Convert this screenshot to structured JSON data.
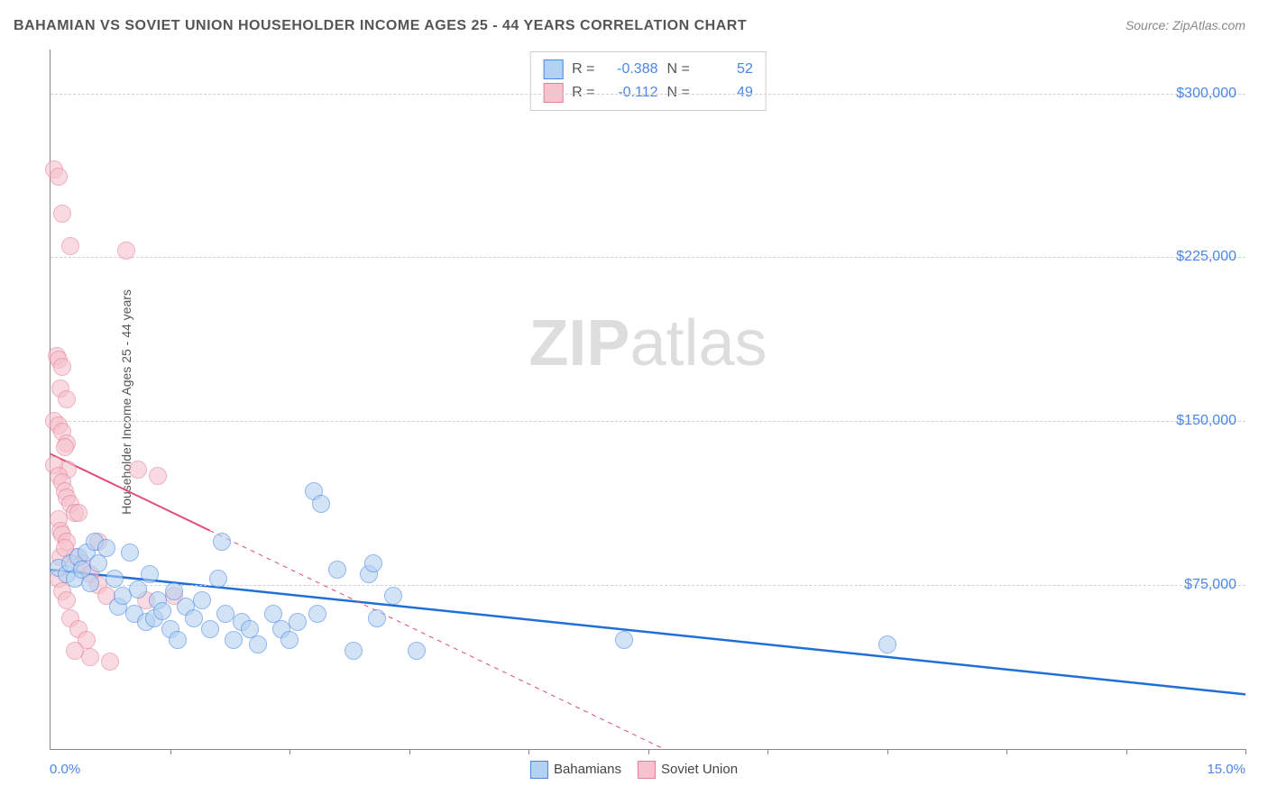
{
  "title_text": "BAHAMIAN VS SOVIET UNION HOUSEHOLDER INCOME AGES 25 - 44 YEARS CORRELATION CHART",
  "source_text": "Source: ZipAtlas.com",
  "y_axis_label": "Householder Income Ages 25 - 44 years",
  "watermark": {
    "bold": "ZIP",
    "light": "atlas"
  },
  "chart": {
    "type": "scatter",
    "x_min": 0.0,
    "x_max": 15.0,
    "y_min": 0,
    "y_max": 320000,
    "x_tick_label_left": "0.0%",
    "x_tick_label_right": "15.0%",
    "x_ticks": [
      1.5,
      3.0,
      4.5,
      6.0,
      7.5,
      9.0,
      10.5,
      12.0,
      13.5,
      15.0
    ],
    "y_gridlines": [
      75000,
      150000,
      225000,
      300000
    ],
    "y_tick_labels": [
      "$75,000",
      "$150,000",
      "$225,000",
      "$300,000"
    ],
    "grid_color": "#d0d0d0",
    "axis_color": "#888888",
    "background_color": "#ffffff",
    "marker_radius": 9,
    "marker_border_width": 1.5,
    "series": [
      {
        "name": "Bahamians",
        "fill": "#b3d1f0",
        "stroke": "#4a86e8",
        "fill_opacity": 0.6,
        "R": "-0.388",
        "N": "52",
        "trend": {
          "x1": 0.0,
          "y1": 82000,
          "x2": 15.0,
          "y2": 25000,
          "solid_until_x": 15.0,
          "color": "#1f6fd6",
          "width": 2.5
        },
        "points": [
          [
            0.1,
            83000
          ],
          [
            0.2,
            80000
          ],
          [
            0.25,
            85000
          ],
          [
            0.3,
            78000
          ],
          [
            0.35,
            88000
          ],
          [
            0.4,
            82000
          ],
          [
            0.45,
            90000
          ],
          [
            0.5,
            76000
          ],
          [
            0.55,
            95000
          ],
          [
            0.6,
            85000
          ],
          [
            0.7,
            92000
          ],
          [
            0.8,
            78000
          ],
          [
            0.85,
            65000
          ],
          [
            0.9,
            70000
          ],
          [
            1.0,
            90000
          ],
          [
            1.05,
            62000
          ],
          [
            1.1,
            73000
          ],
          [
            1.2,
            58000
          ],
          [
            1.25,
            80000
          ],
          [
            1.3,
            60000
          ],
          [
            1.35,
            68000
          ],
          [
            1.4,
            63000
          ],
          [
            1.5,
            55000
          ],
          [
            1.55,
            72000
          ],
          [
            1.6,
            50000
          ],
          [
            1.7,
            65000
          ],
          [
            1.8,
            60000
          ],
          [
            1.9,
            68000
          ],
          [
            2.0,
            55000
          ],
          [
            2.1,
            78000
          ],
          [
            2.15,
            95000
          ],
          [
            2.2,
            62000
          ],
          [
            2.3,
            50000
          ],
          [
            2.4,
            58000
          ],
          [
            2.5,
            55000
          ],
          [
            2.6,
            48000
          ],
          [
            2.8,
            62000
          ],
          [
            2.9,
            55000
          ],
          [
            3.0,
            50000
          ],
          [
            3.1,
            58000
          ],
          [
            3.3,
            118000
          ],
          [
            3.4,
            112000
          ],
          [
            3.35,
            62000
          ],
          [
            3.6,
            82000
          ],
          [
            3.8,
            45000
          ],
          [
            4.0,
            80000
          ],
          [
            4.1,
            60000
          ],
          [
            4.3,
            70000
          ],
          [
            4.6,
            45000
          ],
          [
            7.2,
            50000
          ],
          [
            10.5,
            48000
          ],
          [
            4.05,
            85000
          ]
        ]
      },
      {
        "name": "Soviet Union",
        "fill": "#f5c2cd",
        "stroke": "#e57f9a",
        "fill_opacity": 0.6,
        "R": "-0.112",
        "N": "49",
        "trend": {
          "x1": 0.0,
          "y1": 135000,
          "x2": 7.7,
          "y2": 0,
          "solid_until_x": 2.0,
          "color": "#e04b73",
          "width": 2
        },
        "points": [
          [
            0.05,
            265000
          ],
          [
            0.1,
            262000
          ],
          [
            0.15,
            245000
          ],
          [
            0.25,
            230000
          ],
          [
            0.08,
            180000
          ],
          [
            0.1,
            178000
          ],
          [
            0.12,
            165000
          ],
          [
            0.15,
            175000
          ],
          [
            0.2,
            160000
          ],
          [
            0.05,
            150000
          ],
          [
            0.1,
            148000
          ],
          [
            0.15,
            145000
          ],
          [
            0.2,
            140000
          ],
          [
            0.18,
            138000
          ],
          [
            0.22,
            128000
          ],
          [
            0.05,
            130000
          ],
          [
            0.1,
            125000
          ],
          [
            0.15,
            122000
          ],
          [
            0.18,
            118000
          ],
          [
            0.2,
            115000
          ],
          [
            0.25,
            112000
          ],
          [
            0.3,
            108000
          ],
          [
            0.1,
            105000
          ],
          [
            0.12,
            100000
          ],
          [
            0.15,
            98000
          ],
          [
            0.2,
            95000
          ],
          [
            0.3,
            88000
          ],
          [
            0.4,
            85000
          ],
          [
            0.5,
            80000
          ],
          [
            0.6,
            75000
          ],
          [
            0.7,
            70000
          ],
          [
            0.1,
            78000
          ],
          [
            0.15,
            72000
          ],
          [
            0.2,
            68000
          ],
          [
            0.25,
            60000
          ],
          [
            0.35,
            55000
          ],
          [
            0.45,
            50000
          ],
          [
            0.3,
            45000
          ],
          [
            0.5,
            42000
          ],
          [
            0.75,
            40000
          ],
          [
            0.12,
            88000
          ],
          [
            0.18,
            92000
          ],
          [
            1.1,
            128000
          ],
          [
            1.2,
            68000
          ],
          [
            1.35,
            125000
          ],
          [
            1.55,
            70000
          ],
          [
            0.95,
            228000
          ],
          [
            0.35,
            108000
          ],
          [
            0.6,
            95000
          ]
        ]
      }
    ]
  },
  "colors": {
    "title": "#555555",
    "source": "#888888",
    "tick_text": "#4a86e8",
    "legend_text": "#444444"
  }
}
